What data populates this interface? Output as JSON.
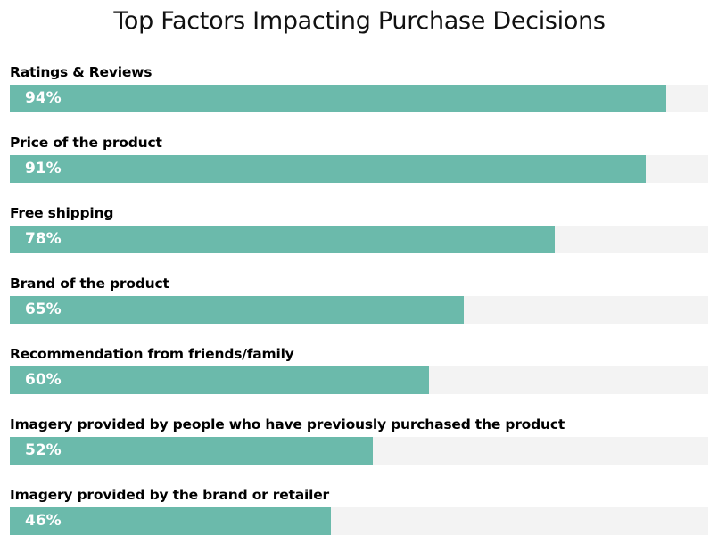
{
  "chart_data": {
    "type": "bar",
    "orientation": "horizontal",
    "title": "Top Factors Impacting Purchase Decisions",
    "xlabel": "",
    "ylabel": "",
    "xlim": [
      0,
      100
    ],
    "grid": false,
    "legend": "none",
    "bar_color": "#6bbaab",
    "track_color": "#f3f3f3",
    "categories": [
      "Ratings & Reviews",
      "Price of the product",
      "Free shipping",
      "Brand of the product",
      "Recommendation from friends/family",
      "Imagery provided by people who have previously purchased the product",
      "Imagery provided by the brand or retailer"
    ],
    "values": [
      94,
      91,
      78,
      65,
      60,
      52,
      46
    ],
    "value_labels": [
      "94%",
      "91%",
      "78%",
      "65%",
      "60%",
      "52%",
      "46%"
    ]
  }
}
